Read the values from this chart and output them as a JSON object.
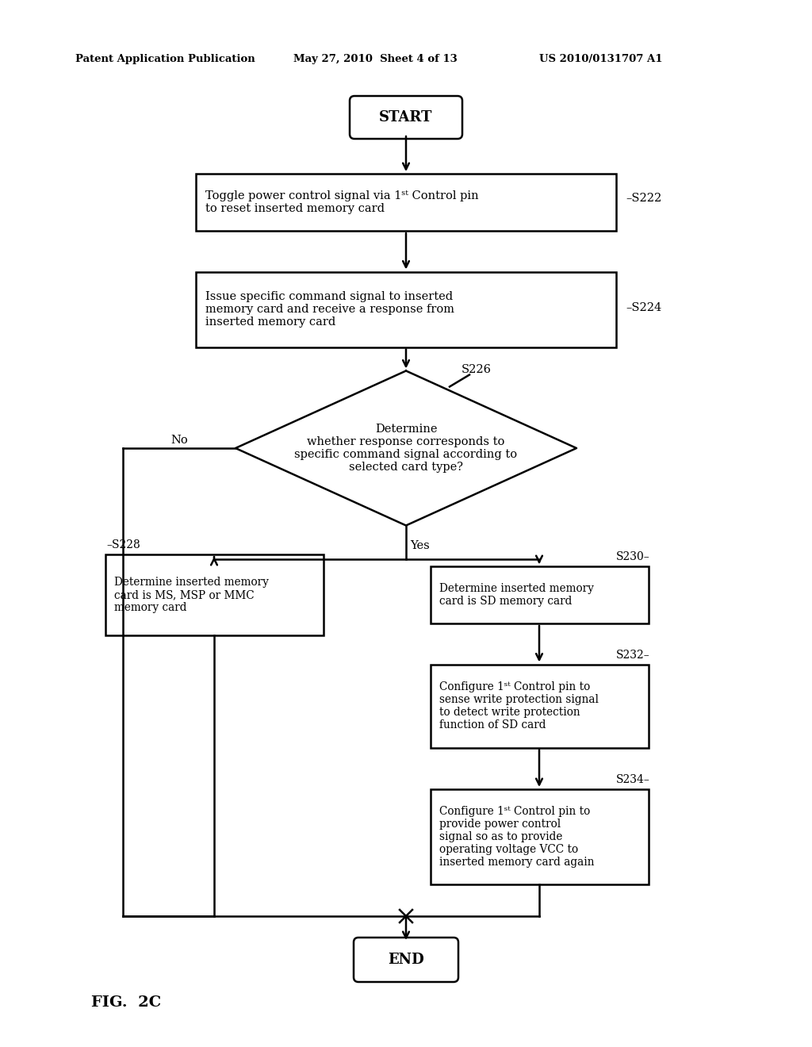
{
  "bg_color": "#ffffff",
  "header_left": "Patent Application Publication",
  "header_mid": "May 27, 2010  Sheet 4 of 13",
  "header_right": "US 2010/0131707 A1",
  "figure_label": "FIG.  2C",
  "s222_text": "Toggle power control signal via 1ˢᵗ Control pin\nto reset inserted memory card",
  "s224_text": "Issue specific command signal to inserted\nmemory card and receive a response from\ninserted memory card",
  "s226_text": "Determine\nwhether response corresponds to\nspecific command signal according to\nselected card type?",
  "s228_text": "Determine inserted memory\ncard is MS, MSP or MMC\nmemory card",
  "s230_text": "Determine inserted memory\ncard is SD memory card",
  "s232_text": "Configure 1ˢᵗ Control pin to\nsense write protection signal\nto detect write protection\nfunction of SD card",
  "s234_text": "Configure 1ˢᵗ Control pin to\nprovide power control\nsignal so as to provide\noperating voltage VCC to\ninserted memory card again"
}
